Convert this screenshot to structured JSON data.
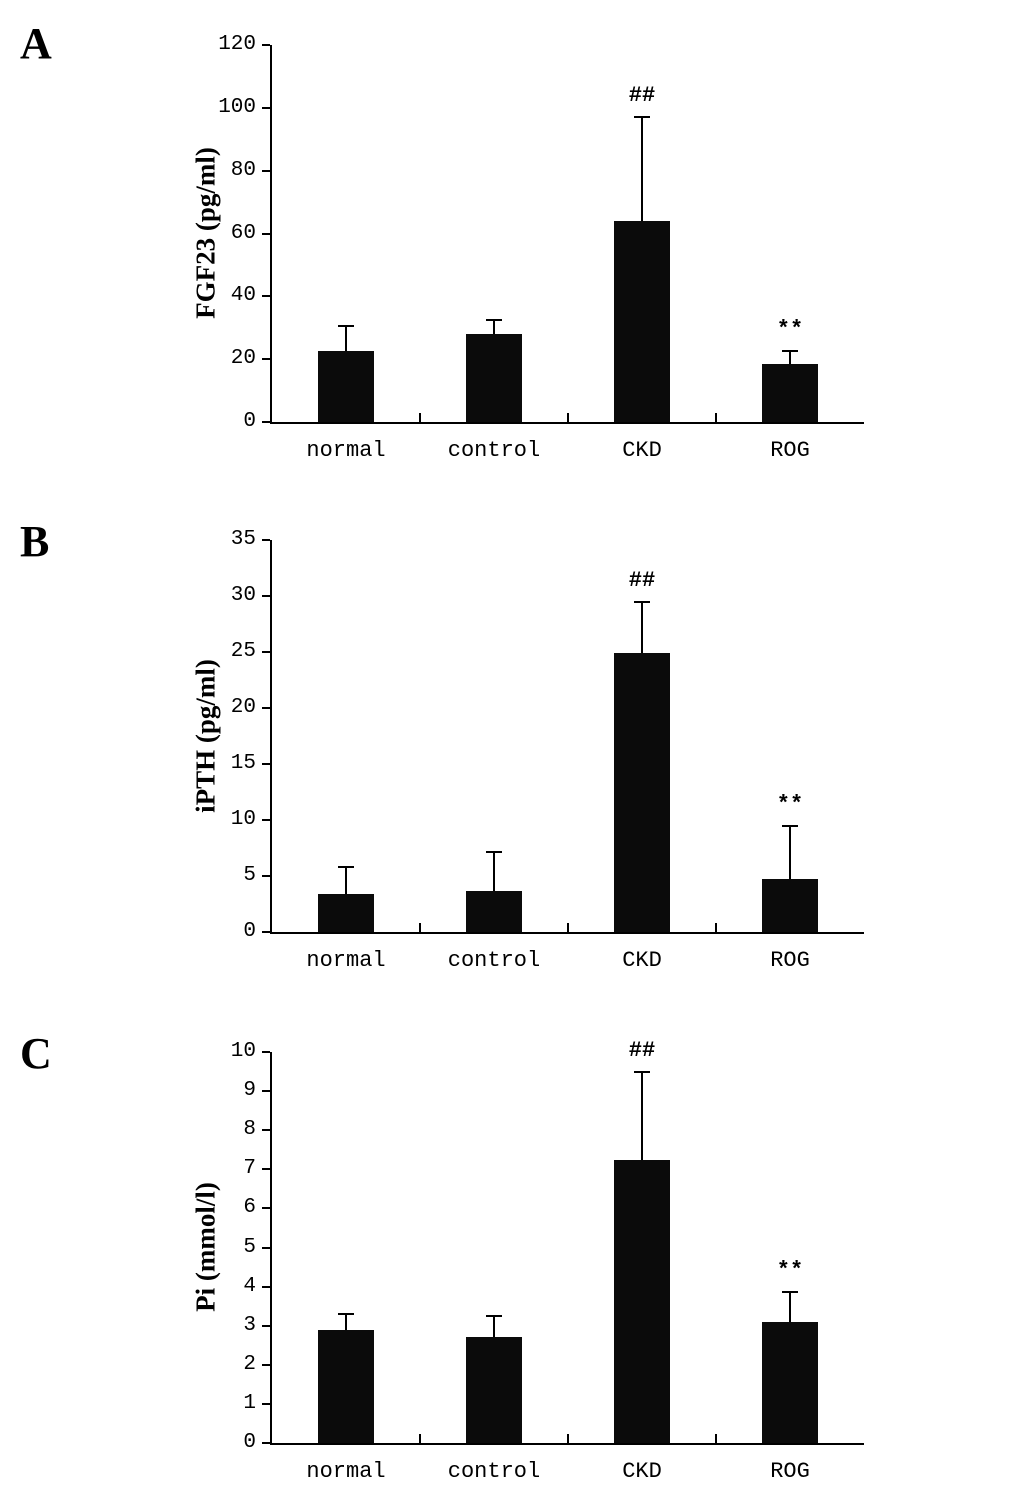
{
  "colors": {
    "bar": "#0b0b0b",
    "axis": "#000000",
    "text": "#000000",
    "background": "#ffffff"
  },
  "chart_data": [
    {
      "type": "bar",
      "panel": "A",
      "title": "",
      "xlabel": "",
      "ylabel": "FGF23 (pg/ml)",
      "categories": [
        "normal",
        "control",
        "CKD",
        "ROG"
      ],
      "values": [
        22.5,
        28,
        64,
        18.5
      ],
      "errors": [
        8,
        4.5,
        33,
        4
      ],
      "annotations": [
        "",
        "",
        "##",
        "**"
      ],
      "ylim": [
        0,
        120
      ],
      "yticks": [
        0,
        20,
        40,
        60,
        80,
        100,
        120
      ],
      "grid": false,
      "legend": "none"
    },
    {
      "type": "bar",
      "panel": "B",
      "title": "",
      "xlabel": "",
      "ylabel": "iPTH (pg/ml)",
      "categories": [
        "normal",
        "control",
        "CKD",
        "ROG"
      ],
      "values": [
        3.4,
        3.7,
        24.9,
        4.7
      ],
      "errors": [
        2.4,
        3.4,
        4.6,
        4.8
      ],
      "annotations": [
        "",
        "",
        "##",
        "**"
      ],
      "ylim": [
        0,
        35
      ],
      "yticks": [
        0,
        5,
        10,
        15,
        20,
        25,
        30,
        35
      ],
      "grid": false,
      "legend": "none"
    },
    {
      "type": "bar",
      "panel": "C",
      "title": "",
      "xlabel": "",
      "ylabel": "Pi (mmol/l)",
      "categories": [
        "normal",
        "control",
        "CKD",
        "ROG"
      ],
      "values": [
        2.9,
        2.7,
        7.25,
        3.1
      ],
      "errors": [
        0.4,
        0.55,
        2.25,
        0.75
      ],
      "annotations": [
        "",
        "",
        "##",
        "**"
      ],
      "ylim": [
        0,
        10
      ],
      "yticks": [
        0,
        1,
        2,
        3,
        4,
        5,
        6,
        7,
        8,
        9,
        10
      ],
      "grid": false,
      "legend": "none"
    }
  ]
}
